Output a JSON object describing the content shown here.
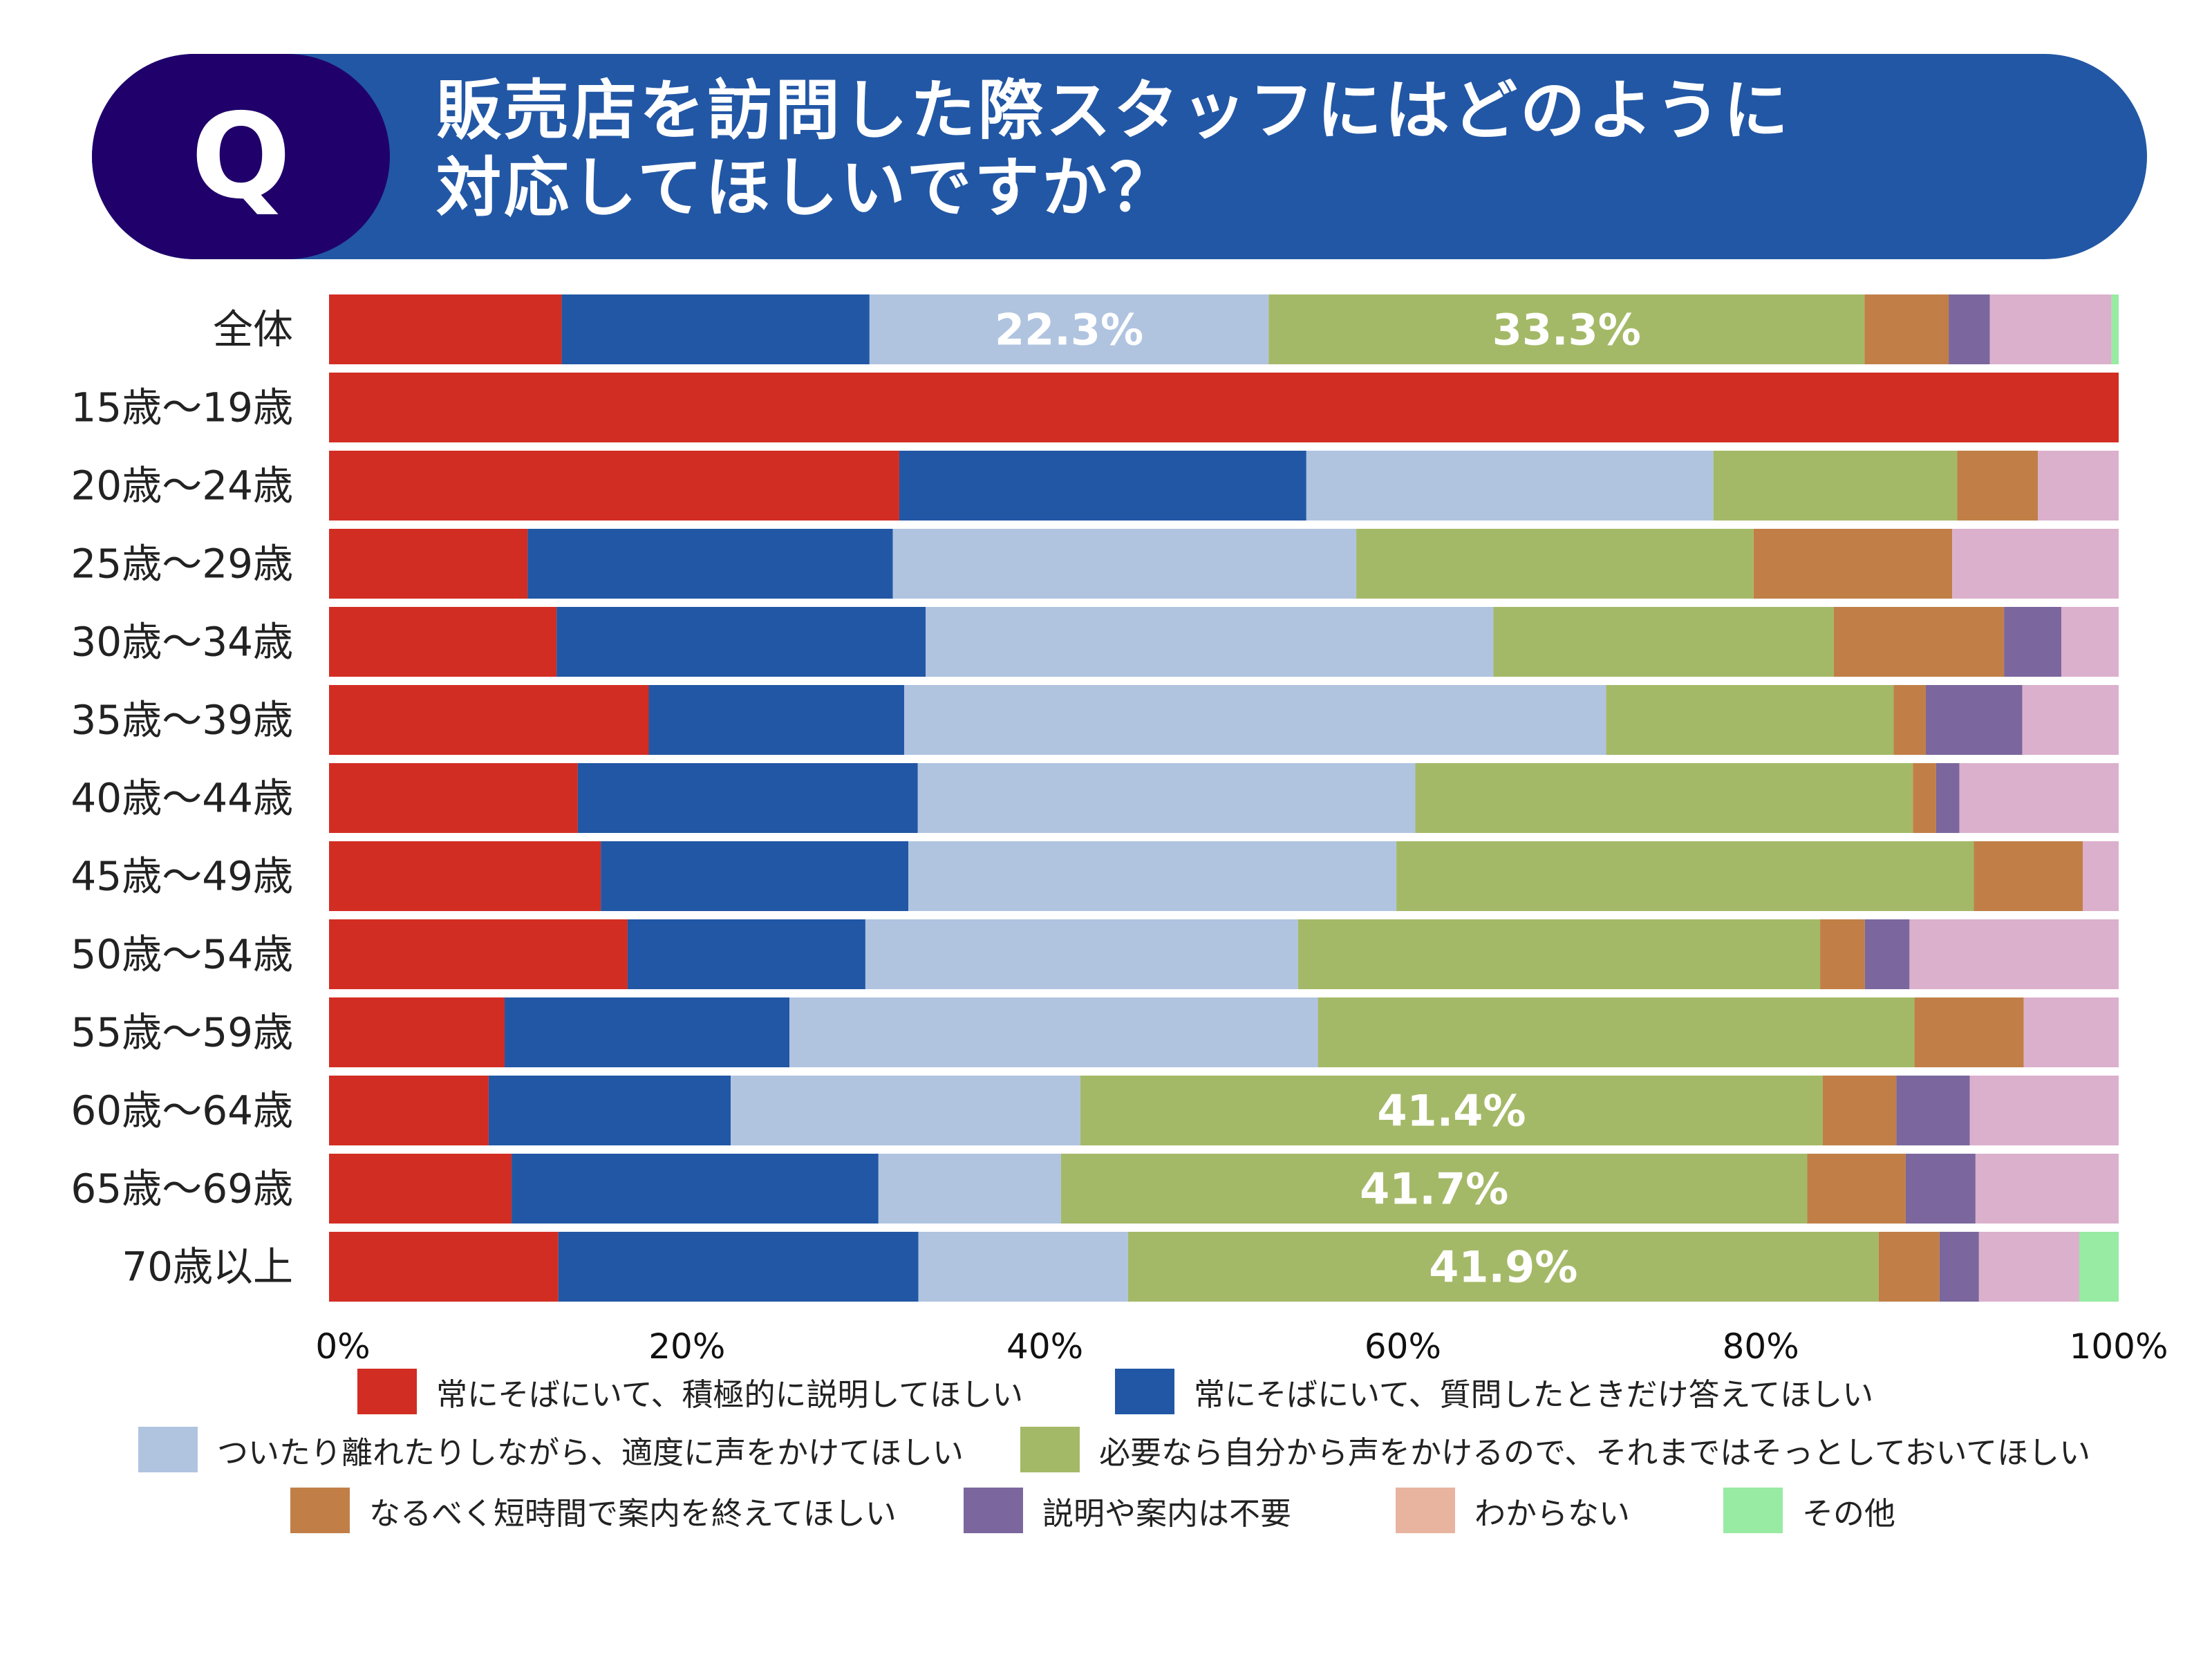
{
  "header": {
    "q_label": "Q",
    "title_lines": [
      "販売店を訪問した際スタッフにはどのように",
      "対応してほしいですか？"
    ]
  },
  "chart_data": {
    "type": "bar",
    "orientation": "horizontal-stacked-100",
    "categories": [
      "全体",
      "15歳～19歳",
      "20歳～24歳",
      "25歳～29歳",
      "30歳～34歳",
      "35歳～39歳",
      "40歳～44歳",
      "45歳～49歳",
      "50歳～54歳",
      "55歳～59歳",
      "60歳～64歳",
      "65歳～69歳",
      "70歳以上"
    ],
    "xlim": [
      0,
      100
    ],
    "x_ticks": [
      "0%",
      "20%",
      "40%",
      "60%",
      "80%",
      "100%"
    ],
    "grid": false,
    "legend_position": "bottom",
    "series": [
      {
        "name": "常にそばにいて、積極的に説明してほしい",
        "color": "#d22d23",
        "legend_color": "#d22d23",
        "values": [
          13.0,
          100,
          31.8,
          11.1,
          12.7,
          17.9,
          13.9,
          15.2,
          16.7,
          9.8,
          8.9,
          10.2,
          12.8
        ]
      },
      {
        "name": "常にそばにいて、質問したときだけ答えてほしい",
        "color": "#2257a5",
        "legend_color": "#2257a5",
        "values": [
          17.2,
          0,
          22.7,
          20.4,
          20.6,
          14.3,
          19.0,
          17.2,
          13.3,
          15.9,
          13.5,
          20.5,
          20.1
        ]
      },
      {
        "name": "ついたり離れたりしながら、適度に声をかけてほしい",
        "color": "#b0c4e0",
        "legend_color": "#b0c4e0",
        "values": [
          22.3,
          0,
          22.7,
          25.9,
          31.7,
          39.3,
          27.8,
          27.3,
          24.2,
          29.5,
          19.5,
          10.2,
          11.7
        ]
      },
      {
        "name": "必要なら自分から声をかけるので、それまではそっとしておいてほしい",
        "color": "#a4b967",
        "legend_color": "#a4b967",
        "values": [
          33.3,
          0,
          13.6,
          22.2,
          19.0,
          16.1,
          27.8,
          32.3,
          29.2,
          33.3,
          41.4,
          41.7,
          41.9
        ]
      },
      {
        "name": "なるべく短時間で案内を終えてほしい",
        "color": "#c17f47",
        "legend_color": "#c17f47",
        "values": [
          4.7,
          0,
          4.5,
          11.1,
          9.5,
          1.8,
          1.3,
          6.1,
          2.5,
          6.1,
          4.1,
          5.5,
          3.4
        ]
      },
      {
        "name": "説明や案内は不要",
        "color": "#7b679d",
        "legend_color": "#7b679d",
        "values": [
          2.3,
          0,
          0,
          0,
          3.2,
          5.4,
          1.3,
          0,
          2.5,
          0,
          4.1,
          3.9,
          2.2
        ]
      },
      {
        "name": "わからない",
        "color": "#dbb0cc",
        "legend_color": "#e8b4a0",
        "values": [
          6.8,
          0,
          4.5,
          9.3,
          3.2,
          5.4,
          8.9,
          2.0,
          11.7,
          5.3,
          8.3,
          8.0,
          5.6
        ]
      },
      {
        "name": "その他",
        "color": "#98eba3",
        "legend_color": "#98eba3",
        "values": [
          0.4,
          0,
          0,
          0,
          0,
          0,
          0,
          0,
          0,
          0,
          0,
          0,
          2.2
        ]
      }
    ],
    "data_labels": [
      {
        "category": "全体",
        "series": 2,
        "text": "22.3%"
      },
      {
        "category": "全体",
        "series": 3,
        "text": "33.3%"
      },
      {
        "category": "60歳～64歳",
        "series": 3,
        "text": "41.4%"
      },
      {
        "category": "65歳～69歳",
        "series": 3,
        "text": "41.7%"
      },
      {
        "category": "70歳以上",
        "series": 3,
        "text": "41.9%"
      }
    ]
  }
}
